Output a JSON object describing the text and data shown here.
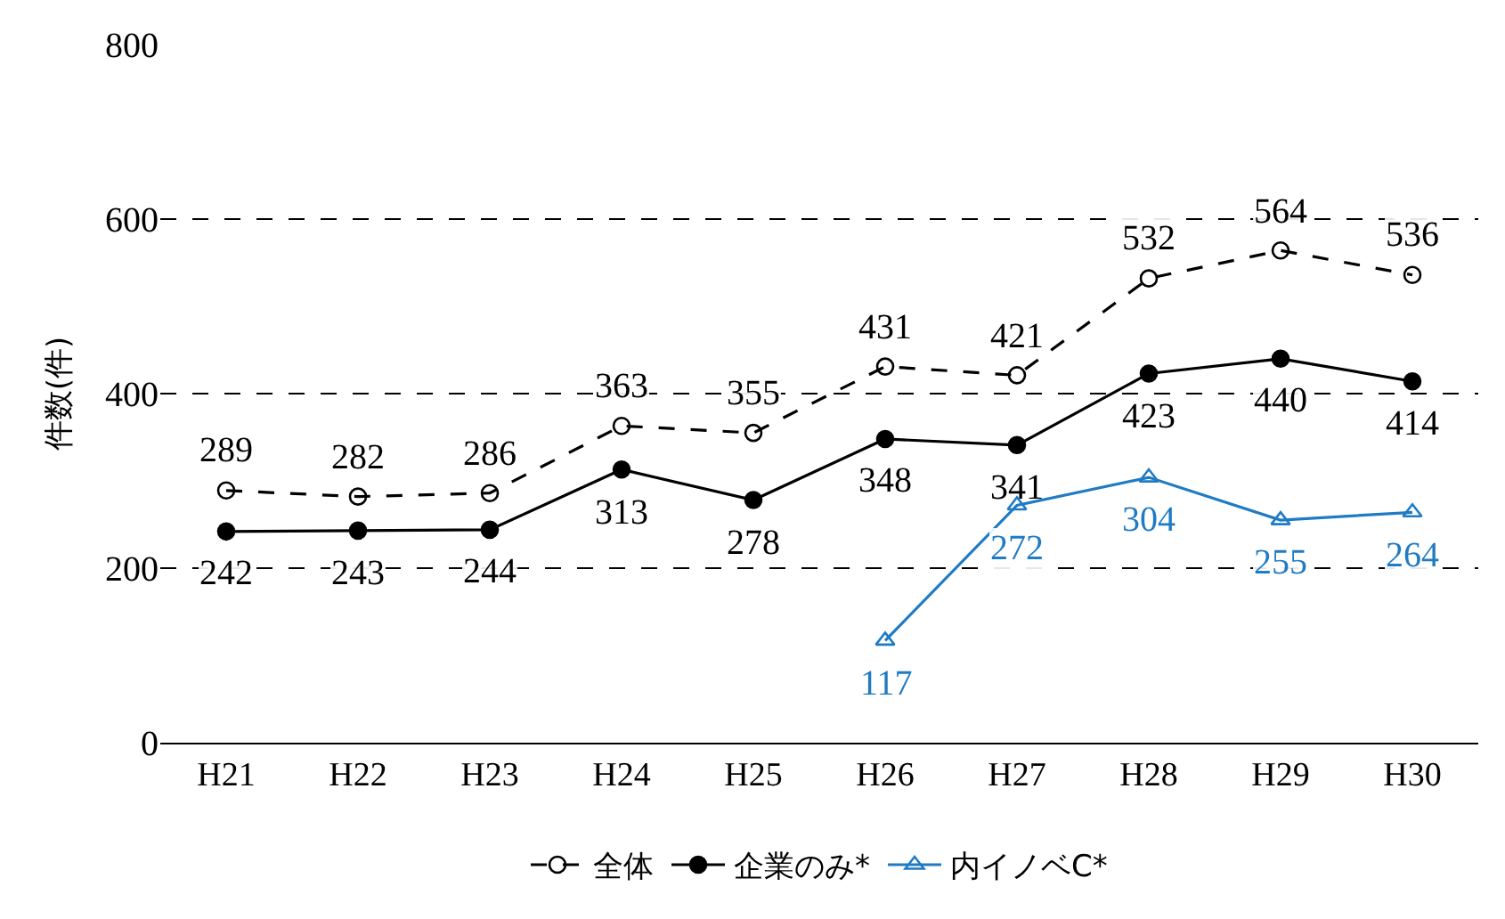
{
  "chart_data": {
    "type": "line",
    "ylabel": "件数(件)",
    "categories": [
      "H21",
      "H22",
      "H23",
      "H24",
      "H25",
      "H26",
      "H27",
      "H28",
      "H29",
      "H30"
    ],
    "series": [
      {
        "name": "全体",
        "color": "#000000",
        "values": [
          289,
          282,
          286,
          363,
          355,
          431,
          421,
          532,
          564,
          536
        ],
        "line_style": "dashed",
        "marker": "circle"
      },
      {
        "name": "企業のみ*",
        "color": "#000000",
        "values": [
          242,
          243,
          244,
          313,
          278,
          348,
          341,
          423,
          440,
          414
        ],
        "line_style": "solid",
        "marker": "circle"
      },
      {
        "name": "内イノベC*",
        "color": "#1f7bc4",
        "values": [
          null,
          null,
          null,
          null,
          null,
          117,
          272,
          304,
          255,
          264
        ],
        "line_style": "solid",
        "marker": "triangle"
      }
    ],
    "ylim": [
      0,
      800
    ],
    "yticks": [
      0,
      200,
      400,
      600,
      800
    ],
    "grid": "y",
    "legend": "bottom",
    "data_labels": true
  }
}
